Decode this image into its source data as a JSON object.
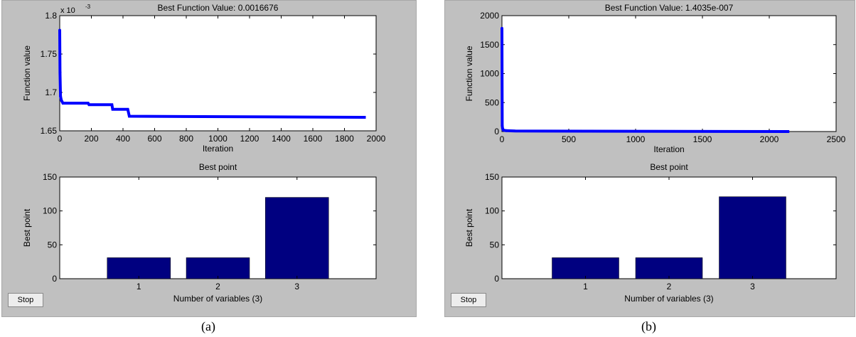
{
  "figures": [
    {
      "id": "a",
      "caption": "(a)",
      "stop_label": "Stop",
      "colors": {
        "line": "#0000ff",
        "bar": "#000080",
        "axes_bg": "#ffffff",
        "panel_bg": "#c0c0c0"
      },
      "top": {
        "title": "Best Function Value: 0.0016676",
        "xlabel": "Iteration",
        "ylabel": "Function value",
        "exponent_label": "x 10",
        "exponent_power": "-3",
        "xlim": [
          0,
          2000
        ],
        "ylim": [
          1.65,
          1.8
        ],
        "xticks": [
          0,
          200,
          400,
          600,
          800,
          1000,
          1200,
          1400,
          1600,
          1800,
          2000
        ],
        "yticks": [
          1.65,
          1.7,
          1.75,
          1.8
        ],
        "ytick_labels": [
          "1.65",
          "1.7",
          "1.75",
          "1.8"
        ]
      },
      "bottom": {
        "title": "Best point",
        "xlabel": "Number of variables (3)",
        "ylabel": "Best point",
        "categories": [
          "1",
          "2",
          "3"
        ],
        "values": [
          31,
          31,
          120
        ],
        "xlim": [
          0,
          4
        ],
        "ylim": [
          0,
          150
        ],
        "yticks": [
          0,
          50,
          100,
          150
        ]
      }
    },
    {
      "id": "b",
      "caption": "(b)",
      "stop_label": "Stop",
      "colors": {
        "line": "#0000ff",
        "bar": "#000080",
        "axes_bg": "#ffffff",
        "panel_bg": "#c0c0c0"
      },
      "top": {
        "title": "Best Function Value: 1.4035e-007",
        "xlabel": "Iteration",
        "ylabel": "Function value",
        "exponent_label": "",
        "exponent_power": "",
        "xlim": [
          0,
          2500
        ],
        "ylim": [
          0,
          2000
        ],
        "xticks": [
          0,
          500,
          1000,
          1500,
          2000,
          2500
        ],
        "yticks": [
          0,
          500,
          1000,
          1500,
          2000
        ],
        "ytick_labels": [
          "0",
          "500",
          "1000",
          "1500",
          "2000"
        ]
      },
      "bottom": {
        "title": "Best point",
        "xlabel": "Number of variables (3)",
        "ylabel": "Best point",
        "categories": [
          "1",
          "2",
          "3"
        ],
        "values": [
          31,
          31,
          121
        ],
        "xlim": [
          0,
          4
        ],
        "ylim": [
          0,
          150
        ],
        "yticks": [
          0,
          50,
          100,
          150
        ]
      }
    }
  ],
  "chart_data": [
    {
      "type": "scatter",
      "title": "Best Function Value: 0.0016676",
      "xlabel": "Iteration",
      "ylabel": "Function value",
      "y_multiplier": "x 10^-3",
      "xlim": [
        0,
        2000
      ],
      "ylim": [
        1.65,
        1.8
      ],
      "x": [
        0,
        2,
        5,
        10,
        20,
        180,
        185,
        330,
        335,
        430,
        440,
        1935
      ],
      "y": [
        1.781,
        1.726,
        1.695,
        1.69,
        1.686,
        1.686,
        1.684,
        1.684,
        1.678,
        1.678,
        1.669,
        1.6676
      ]
    },
    {
      "type": "bar",
      "title": "Best point",
      "xlabel": "Number of variables (3)",
      "ylabel": "Best point",
      "categories": [
        "1",
        "2",
        "3"
      ],
      "values": [
        31,
        31,
        120
      ],
      "ylim": [
        0,
        150
      ]
    },
    {
      "type": "scatter",
      "title": "Best Function Value: 1.4035e-007",
      "xlabel": "Iteration",
      "ylabel": "Function value",
      "xlim": [
        0,
        2500
      ],
      "ylim": [
        0,
        2000
      ],
      "x": [
        0,
        2,
        5,
        10,
        30,
        100,
        2150
      ],
      "y": [
        1780,
        100,
        50,
        25,
        15,
        8,
        1.4035e-07
      ]
    },
    {
      "type": "bar",
      "title": "Best point",
      "xlabel": "Number of variables (3)",
      "ylabel": "Best point",
      "categories": [
        "1",
        "2",
        "3"
      ],
      "values": [
        31,
        31,
        121
      ],
      "ylim": [
        0,
        150
      ]
    }
  ]
}
